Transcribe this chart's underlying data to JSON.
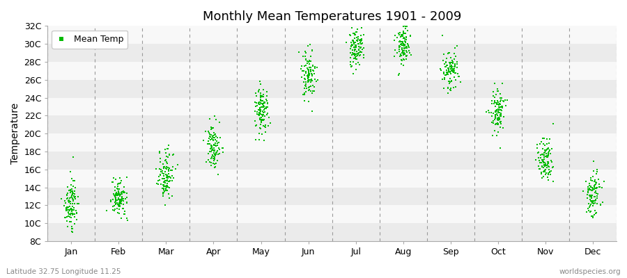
{
  "title": "Monthly Mean Temperatures 1901 - 2009",
  "ylabel": "Temperature",
  "xlabel": "",
  "footer_left": "Latitude 32.75 Longitude 11.25",
  "footer_right": "worldspecies.org",
  "legend_label": "Mean Temp",
  "dot_color": "#00BB00",
  "background_color": "#FFFFFF",
  "band_color_light": "#F0F0F0",
  "band_color_dark": "#E0E0E0",
  "grid_line_color": "#999999",
  "ylim": [
    8,
    32
  ],
  "ytick_step": 2,
  "months": [
    "Jan",
    "Feb",
    "Mar",
    "Apr",
    "May",
    "Jun",
    "Jul",
    "Aug",
    "Sep",
    "Oct",
    "Nov",
    "Dec"
  ],
  "mean_temps": [
    12.0,
    12.8,
    15.5,
    18.5,
    22.5,
    26.5,
    29.5,
    29.8,
    27.0,
    22.5,
    17.0,
    13.2
  ],
  "std_temps": [
    1.2,
    1.0,
    1.3,
    1.2,
    1.3,
    1.2,
    1.0,
    1.0,
    1.1,
    1.2,
    1.3,
    1.2
  ],
  "trend_per_year": [
    0.015,
    0.012,
    0.012,
    0.012,
    0.012,
    0.01,
    0.008,
    0.008,
    0.01,
    0.012,
    0.012,
    0.015
  ],
  "n_years": 109,
  "start_year": 1901,
  "seed": 42
}
